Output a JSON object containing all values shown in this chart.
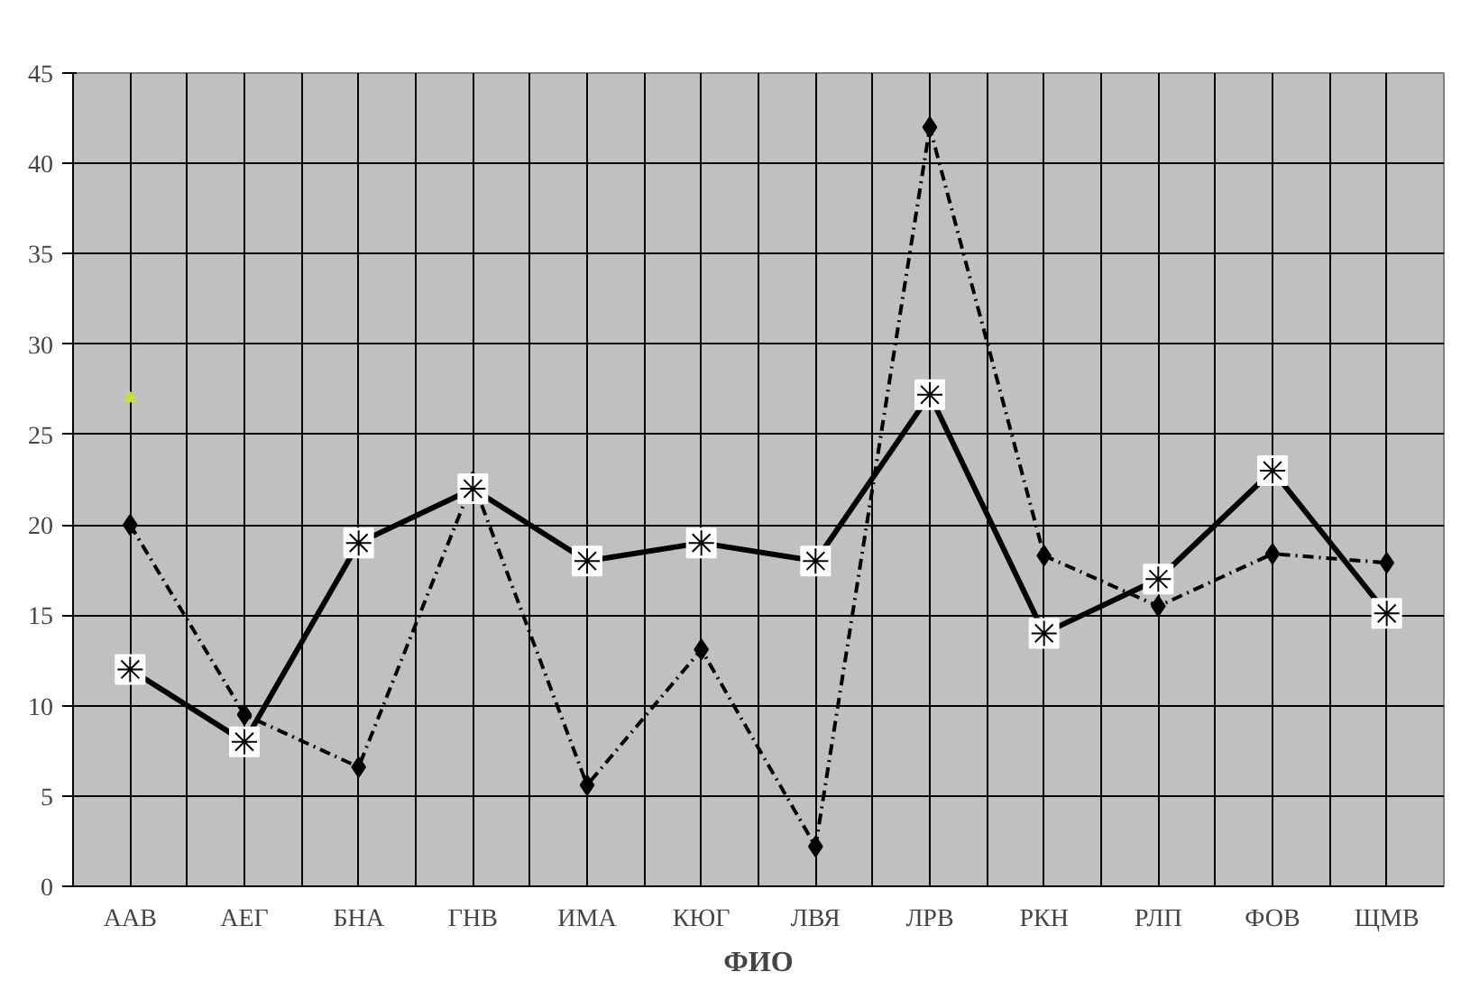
{
  "chart_data": {
    "type": "line",
    "xlabel": "ФИО",
    "categories": [
      "ААВ",
      "АЕГ",
      "БНА",
      "ГНВ",
      "ИМА",
      "КЮГ",
      "ЛВЯ",
      "ЛРВ",
      "РКН",
      "РЛП",
      "ФОВ",
      "ЩМВ"
    ],
    "series": [
      {
        "color": "#000000",
        "marker": "diamond",
        "line_style": "dashed",
        "values": [
          20,
          9.5,
          6.6,
          22.4,
          5.6,
          13.1,
          2.2,
          42,
          18.3,
          15.5,
          18.4,
          17.9
        ]
      },
      {
        "color": "#000000",
        "marker": "cross",
        "line_style": "solid",
        "values": [
          12,
          8,
          19,
          22,
          18,
          19,
          18,
          27.2,
          14,
          17,
          23,
          15.1
        ]
      },
      {
        "type": "scatter",
        "color": "#ccdd33",
        "marker": "triangle",
        "values": [
          27,
          null,
          null,
          null,
          null,
          null,
          null,
          null,
          null,
          null,
          null,
          null
        ]
      }
    ],
    "ylim": [
      0,
      45
    ],
    "yticks": [
      0,
      5,
      10,
      15,
      20,
      25,
      30,
      35,
      40,
      45
    ],
    "grid": true
  }
}
